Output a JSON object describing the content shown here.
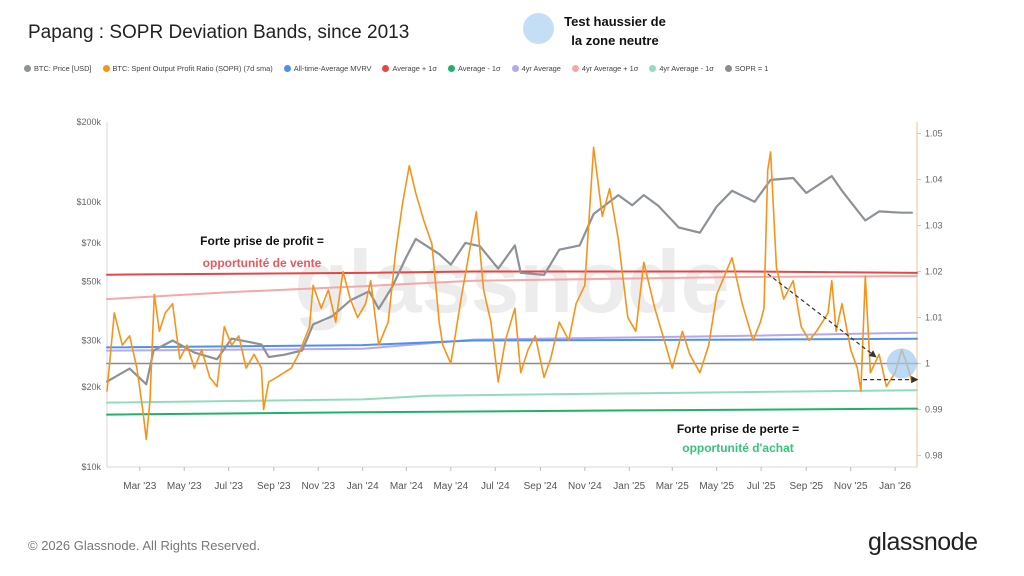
{
  "title": "Papang : SOPR Deviation Bands, since 2013",
  "callout_top": {
    "line1": "Test haussier de",
    "line2": "la zone neutre"
  },
  "legend": [
    {
      "label": "BTC: Price [USD]",
      "color": "#8c9298"
    },
    {
      "label": "BTC: Spent Output Profit Ratio (SOPR) (7d sma)",
      "color": "#f7931a"
    },
    {
      "label": "All-time-Average MVRV",
      "color": "#4f8ff0"
    },
    {
      "label": "Average + 1σ",
      "color": "#e84545"
    },
    {
      "label": "Average - 1σ",
      "color": "#1fb36a"
    },
    {
      "label": "4yr Average",
      "color": "#b3a9f2"
    },
    {
      "label": "4yr Average + 1σ",
      "color": "#f5a8a8"
    },
    {
      "label": "4yr Average - 1σ",
      "color": "#92dcbc"
    },
    {
      "label": "SOPR = 1",
      "color": "#8d8d8d"
    }
  ],
  "annotations": {
    "profit_line1": "Forte prise de profit =",
    "profit_line2": "opportunité de vente",
    "loss_line1": "Forte prise de perte =",
    "loss_line2": "opportunité d'achat"
  },
  "watermark": "glassnode",
  "copyright": "© 2026 Glassnode. All Rights Reserved.",
  "brand": "glassnode",
  "colors": {
    "price": "#8c9298",
    "sopr": "#f7931a",
    "mvrv": "#4f8ff0",
    "plus1": "#e84545",
    "minus1": "#1fb36a",
    "avg4": "#b3a9f2",
    "avg4p": "#f5a8a8",
    "avg4m": "#92dcbc",
    "one": "#8d8d8d",
    "profit": "#e8585e",
    "loss": "#38c37a"
  },
  "chart_data": {
    "type": "line",
    "x_labels": [
      "Mar '23",
      "May '23",
      "Jul '23",
      "Sep '23",
      "Nov '23",
      "Jan '24",
      "Mar '24",
      "May '24",
      "Jul '24",
      "Sep '24",
      "Nov '24",
      "Jan '25",
      "Mar '25",
      "May '25",
      "Jul '25",
      "Sep '25",
      "Nov '25",
      "Jan '26"
    ],
    "x_range": [
      "2023-01-15",
      "2026-01-31"
    ],
    "y_left": {
      "scale": "log",
      "ticks": [
        "$10k",
        "$20k",
        "$30k",
        "$50k",
        "$70k",
        "$100k",
        "$200k"
      ],
      "tick_values": [
        10000,
        20000,
        30000,
        50000,
        70000,
        100000,
        200000
      ],
      "range": [
        10000,
        200000
      ]
    },
    "y_right": {
      "scale": "linear",
      "ticks": [
        "0.98",
        "0.99",
        "1",
        "1.01",
        "1.02",
        "1.03",
        "1.04",
        "1.05"
      ],
      "tick_values": [
        0.98,
        0.99,
        1,
        1.01,
        1.02,
        1.03,
        1.04,
        1.05
      ],
      "range": [
        0.9775,
        1.0525
      ]
    },
    "series": [
      {
        "name": "BTC: Price [USD]",
        "axis": "left",
        "points": [
          [
            "2023-01-15",
            21000
          ],
          [
            "2023-02-15",
            23500
          ],
          [
            "2023-03-10",
            20500
          ],
          [
            "2023-03-20",
            27500
          ],
          [
            "2023-04-15",
            30000
          ],
          [
            "2023-05-15",
            27000
          ],
          [
            "2023-06-15",
            25500
          ],
          [
            "2023-07-05",
            30500
          ],
          [
            "2023-08-15",
            29000
          ],
          [
            "2023-08-25",
            26000
          ],
          [
            "2023-09-15",
            26500
          ],
          [
            "2023-10-10",
            27500
          ],
          [
            "2023-10-25",
            34500
          ],
          [
            "2023-11-20",
            37000
          ],
          [
            "2023-12-15",
            42500
          ],
          [
            "2024-01-10",
            46000
          ],
          [
            "2024-01-23",
            39500
          ],
          [
            "2024-02-10",
            47500
          ],
          [
            "2024-03-01",
            62000
          ],
          [
            "2024-03-14",
            72500
          ],
          [
            "2024-04-15",
            63500
          ],
          [
            "2024-05-01",
            58000
          ],
          [
            "2024-05-21",
            70000
          ],
          [
            "2024-06-10",
            68000
          ],
          [
            "2024-07-05",
            56000
          ],
          [
            "2024-07-28",
            68500
          ],
          [
            "2024-08-05",
            54000
          ],
          [
            "2024-09-06",
            53000
          ],
          [
            "2024-09-27",
            66000
          ],
          [
            "2024-10-25",
            68500
          ],
          [
            "2024-11-13",
            90000
          ],
          [
            "2024-12-17",
            106000
          ],
          [
            "2025-01-05",
            97000
          ],
          [
            "2025-01-21",
            106000
          ],
          [
            "2025-02-10",
            96500
          ],
          [
            "2025-03-10",
            80000
          ],
          [
            "2025-04-08",
            76500
          ],
          [
            "2025-05-01",
            96000
          ],
          [
            "2025-05-22",
            110000
          ],
          [
            "2025-06-22",
            100000
          ],
          [
            "2025-07-14",
            121000
          ],
          [
            "2025-08-14",
            123000
          ],
          [
            "2025-09-01",
            108000
          ],
          [
            "2025-10-06",
            125000
          ],
          [
            "2025-10-20",
            110000
          ],
          [
            "2025-11-21",
            85000
          ],
          [
            "2025-12-10",
            92000
          ],
          [
            "2026-01-10",
            91000
          ],
          [
            "2026-01-24",
            91000
          ]
        ]
      },
      {
        "name": "BTC: Spent Output Profit Ratio (SOPR) (7d sma)",
        "axis": "right",
        "points": [
          [
            "2023-01-15",
            0.994
          ],
          [
            "2023-01-25",
            1.011
          ],
          [
            "2023-02-05",
            1.004
          ],
          [
            "2023-02-15",
            1.006
          ],
          [
            "2023-02-25",
            0.999
          ],
          [
            "2023-03-05",
            0.99
          ],
          [
            "2023-03-10",
            0.9835
          ],
          [
            "2023-03-15",
            0.992
          ],
          [
            "2023-03-21",
            1.015
          ],
          [
            "2023-03-28",
            1.007
          ],
          [
            "2023-04-05",
            1.011
          ],
          [
            "2023-04-15",
            1.013
          ],
          [
            "2023-04-25",
            1.001
          ],
          [
            "2023-05-05",
            1.004
          ],
          [
            "2023-05-15",
            0.999
          ],
          [
            "2023-05-25",
            1.003
          ],
          [
            "2023-06-05",
            0.997
          ],
          [
            "2023-06-15",
            0.995
          ],
          [
            "2023-06-25",
            1.008
          ],
          [
            "2023-07-05",
            1.004
          ],
          [
            "2023-07-15",
            1.006
          ],
          [
            "2023-07-25",
            0.999
          ],
          [
            "2023-08-05",
            1.002
          ],
          [
            "2023-08-15",
            0.999
          ],
          [
            "2023-08-18",
            0.99
          ],
          [
            "2023-08-25",
            0.996
          ],
          [
            "2023-09-05",
            0.997
          ],
          [
            "2023-09-15",
            0.998
          ],
          [
            "2023-09-25",
            0.999
          ],
          [
            "2023-10-05",
            1.002
          ],
          [
            "2023-10-20",
            1.008
          ],
          [
            "2023-10-25",
            1.017
          ],
          [
            "2023-11-05",
            1.012
          ],
          [
            "2023-11-15",
            1.016
          ],
          [
            "2023-11-25",
            1.009
          ],
          [
            "2023-12-05",
            1.02
          ],
          [
            "2023-12-15",
            1.014
          ],
          [
            "2023-12-25",
            1.01
          ],
          [
            "2024-01-05",
            1.013
          ],
          [
            "2024-01-12",
            1.018
          ],
          [
            "2024-01-23",
            1.004
          ],
          [
            "2024-02-05",
            1.009
          ],
          [
            "2024-02-15",
            1.024
          ],
          [
            "2024-02-25",
            1.035
          ],
          [
            "2024-03-05",
            1.043
          ],
          [
            "2024-03-14",
            1.037
          ],
          [
            "2024-03-25",
            1.031
          ],
          [
            "2024-04-05",
            1.026
          ],
          [
            "2024-04-15",
            1.009
          ],
          [
            "2024-04-20",
            1.004
          ],
          [
            "2024-05-01",
            1.0
          ],
          [
            "2024-05-15",
            1.014
          ],
          [
            "2024-05-25",
            1.023
          ],
          [
            "2024-06-05",
            1.033
          ],
          [
            "2024-06-15",
            1.016
          ],
          [
            "2024-06-25",
            1.009
          ],
          [
            "2024-07-05",
            0.996
          ],
          [
            "2024-07-15",
            1.005
          ],
          [
            "2024-07-28",
            1.012
          ],
          [
            "2024-08-05",
            0.998
          ],
          [
            "2024-08-15",
            1.003
          ],
          [
            "2024-08-25",
            1.006
          ],
          [
            "2024-09-06",
            0.997
          ],
          [
            "2024-09-15",
            1.001
          ],
          [
            "2024-09-27",
            1.009
          ],
          [
            "2024-10-10",
            1.005
          ],
          [
            "2024-10-20",
            1.013
          ],
          [
            "2024-11-01",
            1.017
          ],
          [
            "2024-11-13",
            1.047
          ],
          [
            "2024-11-25",
            1.032
          ],
          [
            "2024-12-05",
            1.038
          ],
          [
            "2024-12-17",
            1.027
          ],
          [
            "2024-12-30",
            1.01
          ],
          [
            "2025-01-10",
            1.007
          ],
          [
            "2025-01-21",
            1.022
          ],
          [
            "2025-02-05",
            1.012
          ],
          [
            "2025-02-20",
            1.004
          ],
          [
            "2025-03-01",
            0.999
          ],
          [
            "2025-03-15",
            1.007
          ],
          [
            "2025-03-25",
            1.002
          ],
          [
            "2025-04-08",
            0.998
          ],
          [
            "2025-04-20",
            1.004
          ],
          [
            "2025-05-01",
            1.015
          ],
          [
            "2025-05-22",
            1.023
          ],
          [
            "2025-06-05",
            1.013
          ],
          [
            "2025-06-20",
            1.005
          ],
          [
            "2025-06-30",
            1.009
          ],
          [
            "2025-07-05",
            1.012
          ],
          [
            "2025-07-10",
            1.042
          ],
          [
            "2025-07-14",
            1.046
          ],
          [
            "2025-07-22",
            1.021
          ],
          [
            "2025-08-01",
            1.014
          ],
          [
            "2025-08-14",
            1.018
          ],
          [
            "2025-08-25",
            1.008
          ],
          [
            "2025-09-05",
            1.005
          ],
          [
            "2025-09-15",
            1.007
          ],
          [
            "2025-10-01",
            1.011
          ],
          [
            "2025-10-06",
            1.018
          ],
          [
            "2025-10-12",
            1.007
          ],
          [
            "2025-10-20",
            1.013
          ],
          [
            "2025-11-01",
            1.003
          ],
          [
            "2025-11-10",
            0.999
          ],
          [
            "2025-11-15",
            0.994
          ],
          [
            "2025-11-21",
            1.019
          ],
          [
            "2025-11-28",
            0.998
          ],
          [
            "2025-12-10",
            1.002
          ],
          [
            "2025-12-20",
            0.995
          ],
          [
            "2026-01-01",
            0.998
          ],
          [
            "2026-01-10",
            1.003
          ],
          [
            "2026-01-17",
            1.0
          ],
          [
            "2026-01-24",
            0.996
          ]
        ]
      },
      {
        "name": "All-time-Average MVRV",
        "axis": "right",
        "points": [
          [
            "2023-01-15",
            1.0035
          ],
          [
            "2024-01-01",
            1.004
          ],
          [
            "2024-06-01",
            1.005
          ],
          [
            "2025-06-01",
            1.0052
          ],
          [
            "2026-01-31",
            1.0054
          ]
        ]
      },
      {
        "name": "Average + 1σ",
        "axis": "right",
        "points": [
          [
            "2023-01-15",
            1.0193
          ],
          [
            "2024-01-01",
            1.0197
          ],
          [
            "2024-06-01",
            1.02
          ],
          [
            "2025-06-01",
            1.02
          ],
          [
            "2026-01-31",
            1.0197
          ]
        ]
      },
      {
        "name": "Average - 1σ",
        "axis": "right",
        "points": [
          [
            "2023-01-15",
            0.9889
          ],
          [
            "2024-01-01",
            0.9894
          ],
          [
            "2025-01-01",
            0.9898
          ],
          [
            "2026-01-31",
            0.9902
          ]
        ]
      },
      {
        "name": "4yr Average",
        "axis": "right",
        "points": [
          [
            "2023-01-15",
            1.0028
          ],
          [
            "2024-01-01",
            1.0032
          ],
          [
            "2024-06-01",
            1.0052
          ],
          [
            "2025-06-01",
            1.006
          ],
          [
            "2026-01-31",
            1.0067
          ]
        ]
      },
      {
        "name": "4yr Average + 1σ",
        "axis": "right",
        "points": [
          [
            "2023-01-15",
            1.014
          ],
          [
            "2023-07-01",
            1.0155
          ],
          [
            "2024-01-01",
            1.0168
          ],
          [
            "2024-06-01",
            1.018
          ],
          [
            "2025-06-01",
            1.0188
          ],
          [
            "2026-01-31",
            1.019
          ]
        ]
      },
      {
        "name": "4yr Average - 1σ",
        "axis": "right",
        "points": [
          [
            "2023-01-15",
            0.9915
          ],
          [
            "2024-01-01",
            0.9922
          ],
          [
            "2024-04-01",
            0.993
          ],
          [
            "2025-01-01",
            0.9935
          ],
          [
            "2026-01-31",
            0.9942
          ]
        ]
      },
      {
        "name": "SOPR = 1",
        "axis": "right",
        "points": [
          [
            "2023-01-15",
            1.0
          ],
          [
            "2026-01-31",
            1.0
          ]
        ]
      }
    ],
    "arrows": [
      {
        "from": [
          "2025-07-10",
          1.0195
        ],
        "to": [
          "2025-12-05",
          1.0015
        ]
      },
      {
        "from": [
          "2025-11-18",
          0.9965
        ],
        "to": [
          "2026-01-31",
          0.9965
        ]
      }
    ],
    "highlight": {
      "at": [
        "2026-01-10",
        1.0
      ],
      "note": "light blue circle"
    },
    "grid": false
  }
}
